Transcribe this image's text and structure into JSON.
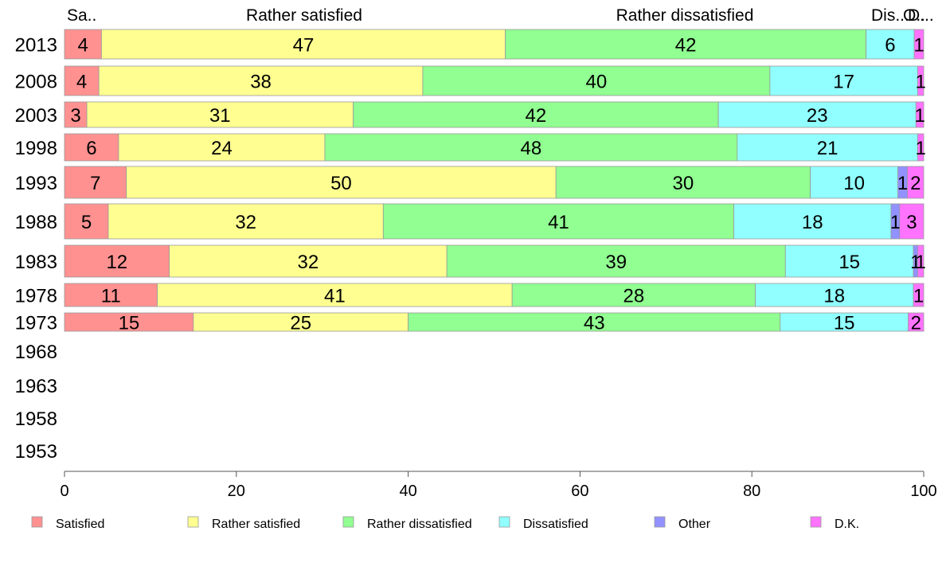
{
  "chart_data": {
    "type": "bar",
    "orientation": "horizontal",
    "stacked": true,
    "xlim": [
      0,
      100
    ],
    "x_ticks": [
      "0",
      "20",
      "40",
      "60",
      "80",
      "100"
    ],
    "y_tick_labels": [
      "2013",
      "2008",
      "2003",
      "1998",
      "1993",
      "1988",
      "1983",
      "1978",
      "1973",
      "1968",
      "1963",
      "1958",
      "1953"
    ],
    "categories": [
      "2013",
      "2008",
      "2003",
      "1998",
      "1993",
      "1988",
      "1983",
      "1978",
      "1973"
    ],
    "series": [
      {
        "name": "Satisfied",
        "color": "#ff9191",
        "values": [
          4.3,
          4,
          2.6,
          6.3,
          7.2,
          5.1,
          12.2,
          10.8,
          15
        ]
      },
      {
        "name": "Rather satisfied",
        "color": "#ffff91",
        "values": [
          47,
          37.7,
          31,
          24,
          50,
          32,
          32.3,
          41.3,
          25
        ]
      },
      {
        "name": "Rather dissatisfied",
        "color": "#91ff91",
        "values": [
          42,
          40.4,
          42.5,
          48,
          29.6,
          40.8,
          39.4,
          28.3,
          43.3
        ]
      },
      {
        "name": "Dissatisfied",
        "color": "#91ffff",
        "values": [
          5.6,
          17.2,
          23,
          21,
          10.2,
          18.3,
          14.9,
          18.4,
          14.9
        ]
      },
      {
        "name": "Other",
        "color": "#9191ff",
        "values": [
          0,
          0,
          0,
          0,
          1.1,
          1,
          0.5,
          0,
          0
        ]
      },
      {
        "name": "D.K.",
        "color": "#ff73ff",
        "values": [
          1.1,
          0.7,
          0.9,
          0.7,
          1.9,
          2.8,
          0.7,
          1.2,
          1.8
        ]
      }
    ],
    "data_labels": [
      [
        "4",
        "47",
        "42",
        "6",
        "",
        "1"
      ],
      [
        "4",
        "38",
        "40",
        "17",
        "",
        "1"
      ],
      [
        "3",
        "31",
        "42",
        "23",
        "",
        "1"
      ],
      [
        "6",
        "24",
        "48",
        "21",
        "",
        "1"
      ],
      [
        "7",
        "50",
        "30",
        "10",
        "1",
        "2"
      ],
      [
        "5",
        "32",
        "41",
        "18",
        "1",
        "3"
      ],
      [
        "12",
        "32",
        "39",
        "15",
        "1",
        "1"
      ],
      [
        "11",
        "41",
        "28",
        "18",
        "",
        "1"
      ],
      [
        "15",
        "25",
        "43",
        "15",
        "",
        "2"
      ]
    ],
    "top_labels": [
      "Sa..",
      "Rather satisfied",
      "Rather dissatisfied",
      "Dis...",
      "O..",
      "D..."
    ],
    "grid": false,
    "legend_position": "bottom"
  }
}
